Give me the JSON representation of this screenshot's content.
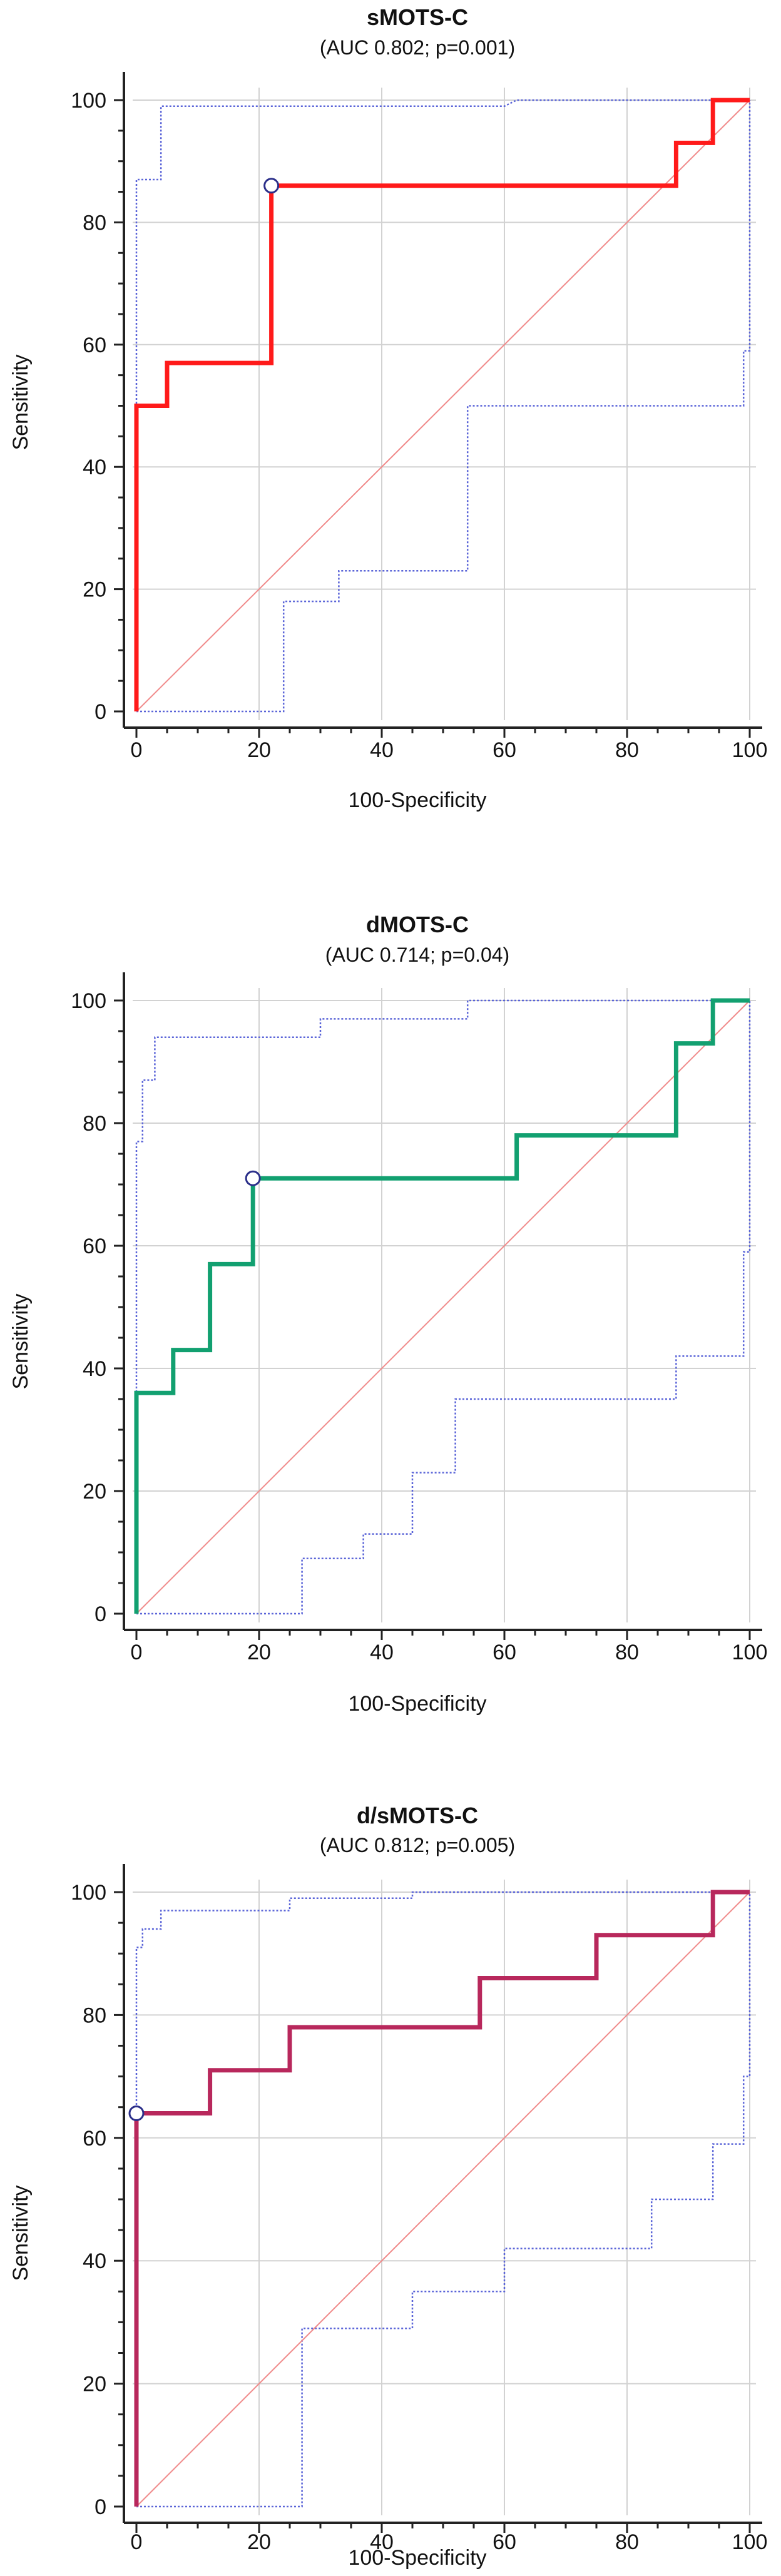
{
  "chart_data": [
    {
      "type": "line",
      "title": "sMOTS-C",
      "subtitle": "(AUC 0.802; p=0.001)",
      "xlabel": "100-Specificity",
      "ylabel": "Sensitivity",
      "xlim": [
        0,
        100
      ],
      "ylim": [
        0,
        100
      ],
      "xticks": [
        0,
        20,
        40,
        60,
        80,
        100
      ],
      "yticks": [
        0,
        20,
        40,
        60,
        80,
        100
      ],
      "grid": true,
      "color": "#ff1a1a",
      "series": [
        {
          "name": "ROC curve",
          "x": [
            0,
            0,
            0,
            5,
            5,
            22,
            22,
            88,
            88,
            94,
            94,
            100
          ],
          "y": [
            0,
            50,
            50,
            50,
            57,
            57,
            86,
            86,
            93,
            93,
            100,
            100
          ]
        },
        {
          "name": "Upper 95% CI",
          "x": [
            0,
            0,
            4,
            4,
            60,
            62,
            100,
            100,
            100
          ],
          "y": [
            0,
            87,
            87,
            99,
            99,
            100,
            100,
            100,
            100
          ]
        },
        {
          "name": "Lower 95% CI",
          "x": [
            0,
            24,
            24,
            33,
            33,
            54,
            54,
            99,
            99,
            100,
            100
          ],
          "y": [
            0,
            0,
            18,
            18,
            23,
            23,
            50,
            50,
            59,
            59,
            100
          ]
        },
        {
          "name": "Reference line",
          "x": [
            0,
            100
          ],
          "y": [
            0,
            100
          ]
        }
      ],
      "marker": {
        "x": 22,
        "y": 86
      }
    },
    {
      "type": "line",
      "title": "dMOTS-C",
      "subtitle": "(AUC 0.714; p=0.04)",
      "xlabel": "100-Specificity",
      "ylabel": "Sensitivity",
      "xlim": [
        0,
        100
      ],
      "ylim": [
        0,
        100
      ],
      "xticks": [
        0,
        20,
        40,
        60,
        80,
        100
      ],
      "yticks": [
        0,
        20,
        40,
        60,
        80,
        100
      ],
      "grid": true,
      "color": "#12a070",
      "series": [
        {
          "name": "ROC curve",
          "x": [
            0,
            0,
            0,
            6,
            6,
            12,
            12,
            19,
            19,
            62,
            62,
            88,
            88,
            94,
            94,
            100
          ],
          "y": [
            0,
            36,
            36,
            36,
            43,
            43,
            57,
            57,
            71,
            71,
            78,
            78,
            93,
            93,
            100,
            100
          ]
        },
        {
          "name": "Upper 95% CI",
          "x": [
            0,
            0,
            1,
            1,
            3,
            3,
            30,
            30,
            54,
            54,
            60,
            100
          ],
          "y": [
            0,
            77,
            77,
            87,
            87,
            94,
            94,
            97,
            97,
            100,
            100,
            100
          ]
        },
        {
          "name": "Lower 95% CI",
          "x": [
            0,
            27,
            27,
            37,
            37,
            45,
            45,
            52,
            52,
            88,
            88,
            99,
            99,
            100,
            100
          ],
          "y": [
            0,
            0,
            9,
            9,
            13,
            13,
            23,
            23,
            35,
            35,
            42,
            42,
            59,
            59,
            100
          ]
        },
        {
          "name": "Reference line",
          "x": [
            0,
            100
          ],
          "y": [
            0,
            100
          ]
        }
      ],
      "marker": {
        "x": 19,
        "y": 71
      }
    },
    {
      "type": "line",
      "title": "d/sMOTS-C",
      "subtitle": "(AUC 0.812; p=0.005)",
      "xlabel": "100-Specificity",
      "ylabel": "Sensitivity",
      "xlim": [
        0,
        100
      ],
      "ylim": [
        0,
        100
      ],
      "xticks": [
        0,
        20,
        40,
        60,
        80,
        100
      ],
      "yticks": [
        0,
        20,
        40,
        60,
        80,
        100
      ],
      "grid": true,
      "color": "#b8285c",
      "series": [
        {
          "name": "ROC curve",
          "x": [
            0,
            0,
            0,
            12,
            12,
            25,
            25,
            56,
            56,
            75,
            75,
            94,
            94,
            100
          ],
          "y": [
            0,
            64,
            64,
            64,
            71,
            71,
            78,
            78,
            86,
            86,
            93,
            93,
            100,
            100
          ]
        },
        {
          "name": "Upper 95% CI",
          "x": [
            0,
            0,
            1,
            1,
            4,
            4,
            25,
            25,
            45,
            45,
            100
          ],
          "y": [
            0,
            91,
            91,
            94,
            94,
            97,
            97,
            99,
            99,
            100,
            100
          ]
        },
        {
          "name": "Lower 95% CI",
          "x": [
            0,
            27,
            27,
            45,
            45,
            60,
            60,
            84,
            84,
            94,
            94,
            99,
            99,
            100,
            100
          ],
          "y": [
            0,
            0,
            29,
            29,
            35,
            35,
            42,
            42,
            50,
            50,
            59,
            59,
            70,
            70,
            100
          ]
        },
        {
          "name": "Reference line",
          "x": [
            0,
            100
          ],
          "y": [
            0,
            100
          ]
        }
      ],
      "marker": {
        "x": 0,
        "y": 64
      }
    }
  ]
}
